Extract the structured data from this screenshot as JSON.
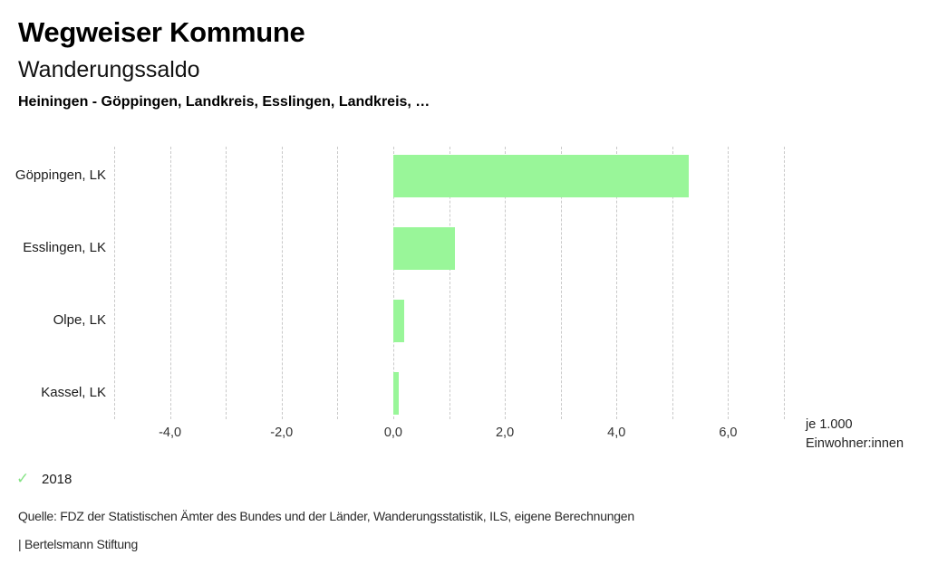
{
  "header": {
    "title": "Wegweiser Kommune",
    "subtitle": "Wanderungssaldo",
    "selection": "Heiningen - Göppingen, Landkreis, Esslingen, Landkreis, …"
  },
  "chart_data": {
    "type": "bar",
    "orientation": "horizontal",
    "title": "Wanderungssaldo",
    "categories": [
      "Göppingen, LK",
      "Esslingen, LK",
      "Olpe, LK",
      "Kassel, LK"
    ],
    "values": [
      5.3,
      1.1,
      0.2,
      0.1
    ],
    "series": [
      {
        "name": "2018",
        "values": [
          5.3,
          1.1,
          0.2,
          0.1
        ]
      }
    ],
    "xlabel": "je 1.000 Einwohner:innen",
    "ylabel": "",
    "xlim": [
      -5,
      7
    ],
    "gridline_step": 1,
    "labeled_ticks": [
      -4,
      -2,
      0,
      2,
      4,
      6
    ],
    "tick_labels": [
      "-4,0",
      "-2,0",
      "0,0",
      "2,0",
      "4,0",
      "6,0"
    ],
    "grid": true,
    "legend_position": "bottom-left",
    "bar_color": "#99f699",
    "gridline_color": "#c9c9c9"
  },
  "unit_annotation": {
    "line1": "je 1.000",
    "line2": "Einwohner:innen"
  },
  "legend": {
    "year": "2018",
    "check_icon": "✓",
    "check_icon_color": "#85e385"
  },
  "footer": {
    "source": "Quelle: FDZ der Statistischen Ämter des Bundes und der Länder, Wanderungsstatistik, ILS, eigene Berechnungen",
    "attribution": "| Bertelsmann Stiftung"
  }
}
